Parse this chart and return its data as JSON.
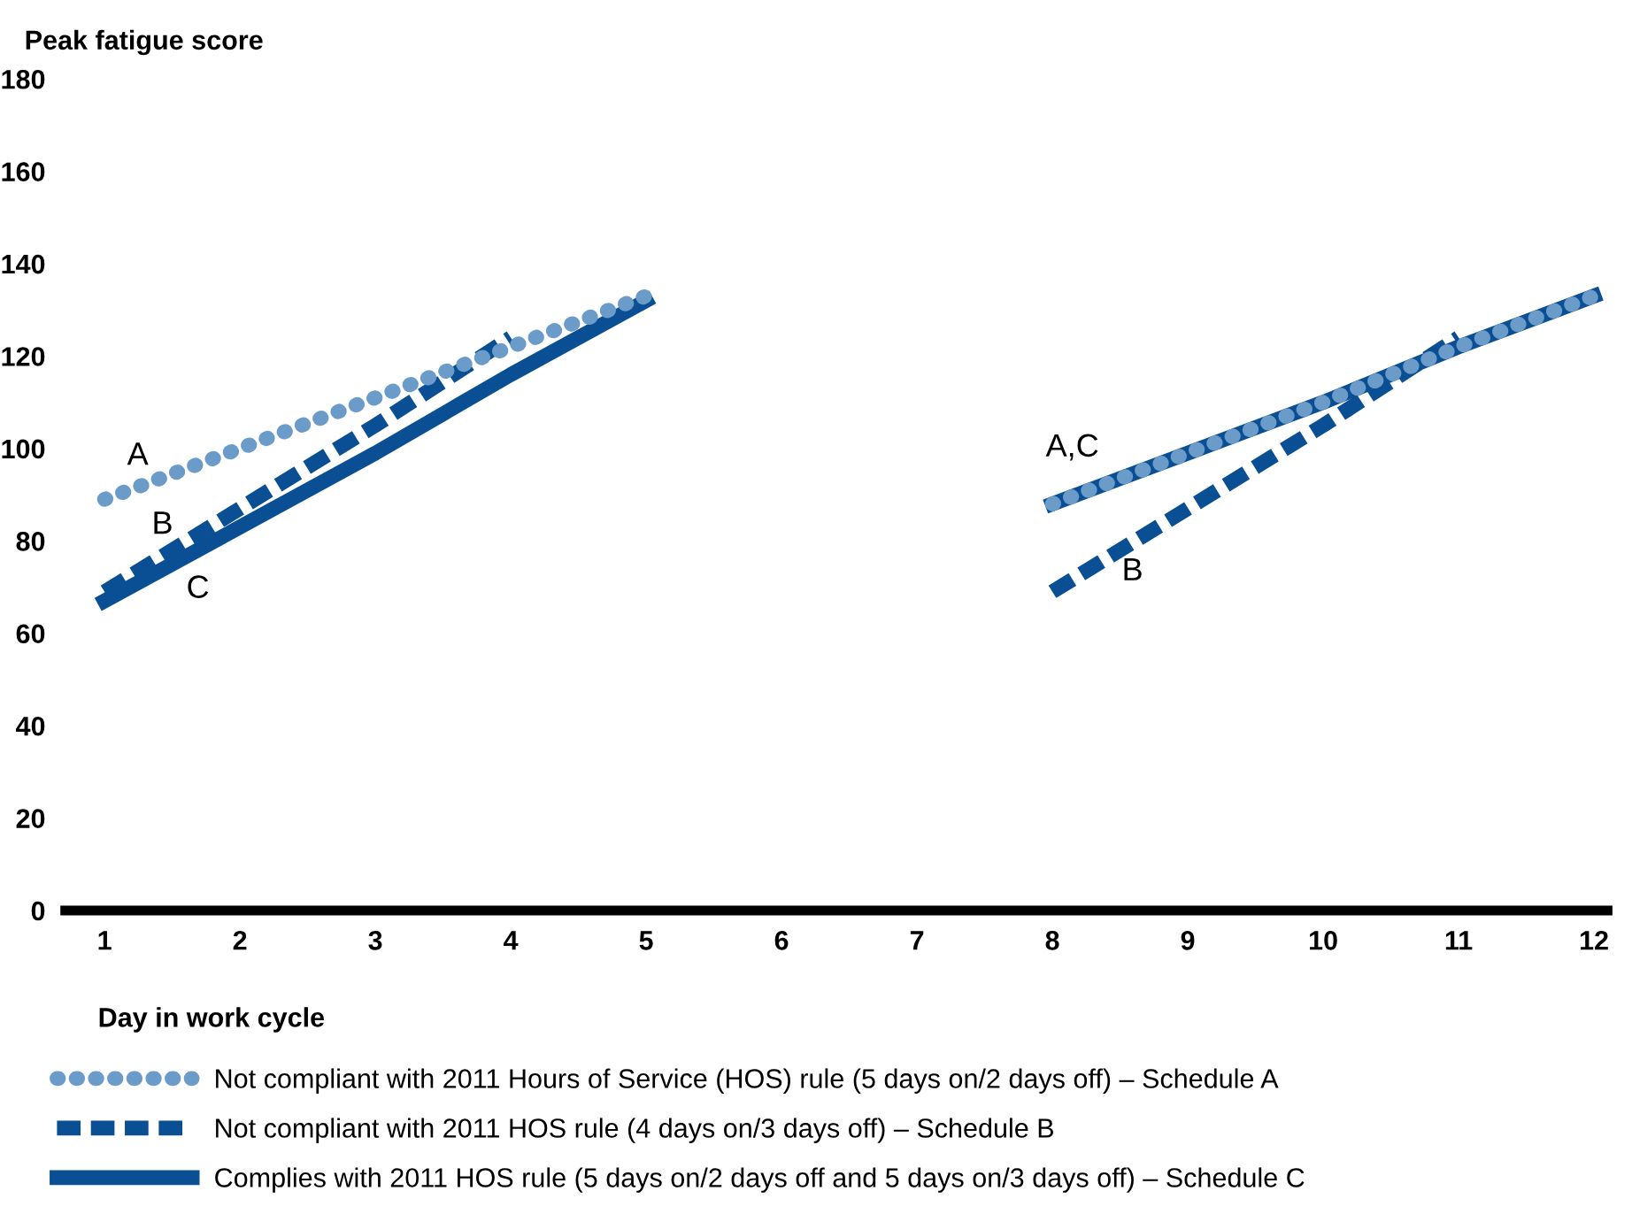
{
  "chart_data": {
    "type": "line",
    "xlabel": "Day in work cycle",
    "ylabel": "Peak fatigue score",
    "x": [
      1,
      2,
      3,
      4,
      5,
      6,
      7,
      8,
      9,
      10,
      11,
      12
    ],
    "series": [
      {
        "name": "Not compliant with 2011 Hours of Service (HOS) rule (5 days on/2 days off) – Schedule A",
        "color": "#6a9bc9",
        "line_style": "dotted",
        "values": [
          89,
          100,
          111,
          122,
          133,
          null,
          null,
          88,
          99,
          110,
          122,
          133
        ]
      },
      {
        "name": "Not compliant with 2011 HOS rule (4 days on/3 days off) – Schedule B",
        "color": "#0a4f94",
        "line_style": "dashed",
        "values": [
          69,
          87,
          105,
          124,
          null,
          null,
          null,
          69,
          87,
          105,
          124,
          null
        ]
      },
      {
        "name": "Complies with 2011 HOS rule (5 days on/2 days off and 5 days on/3 days off) – Schedule C",
        "color": "#0a4f94",
        "line_style": "solid",
        "values": [
          67,
          83,
          99,
          116,
          132,
          null,
          null,
          88,
          99,
          110,
          122,
          133
        ]
      }
    ],
    "annotations": [
      "A",
      "B",
      "C",
      "A,C",
      "B"
    ],
    "xlim": [
      0.71,
      12.1
    ],
    "xticks": [
      1,
      2,
      3,
      4,
      5,
      6,
      7,
      8,
      9,
      10,
      11,
      12
    ],
    "ylim": [
      0,
      180
    ],
    "yticks": [
      0,
      20,
      40,
      60,
      80,
      100,
      120,
      140,
      160,
      180
    ],
    "grid": false,
    "legend": "bottom"
  }
}
